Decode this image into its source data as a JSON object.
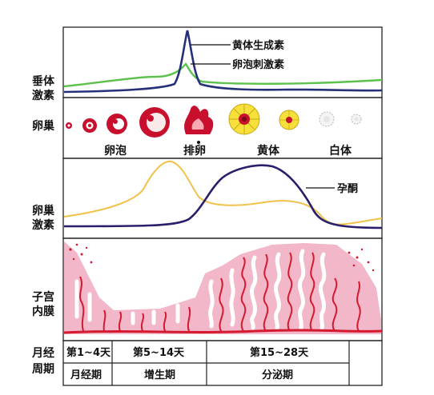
{
  "diagram": {
    "row_labels": {
      "pituitary": [
        "垂体",
        "激素"
      ],
      "ovary": "卵巢",
      "ovarian_hormones": [
        "卵巢",
        "激素"
      ],
      "endometrium": [
        "子宫",
        "内膜"
      ],
      "cycle": [
        "月经",
        "周期"
      ]
    },
    "pituitary_panel": {
      "lh_label": "黄体生成素",
      "fsh_label": "卵泡刺激素",
      "lh_color": "#26307a",
      "fsh_color": "#5cc24c"
    },
    "ovary_panel": {
      "stage_labels": {
        "follicle": "卵泡",
        "ovulation": "排卵",
        "corpus_luteum": "黄体",
        "corpus_albicans": "白体"
      },
      "follicle_color": "#c8102e",
      "luteum_color": "#f7e03a"
    },
    "hormone_panel": {
      "progesterone_label": "孕酮",
      "progesterone_color": "#2a1f6b",
      "estrogen_color": "#f0c24a"
    },
    "endometrium_panel": {
      "tissue_color": "#f2b7c8",
      "vessel_color": "#d41a30"
    },
    "cycle_table": {
      "days": [
        "第1~4天",
        "第5~14天",
        "第15~28天"
      ],
      "phases": [
        "月经期",
        "增生期",
        "分泌期"
      ]
    }
  }
}
